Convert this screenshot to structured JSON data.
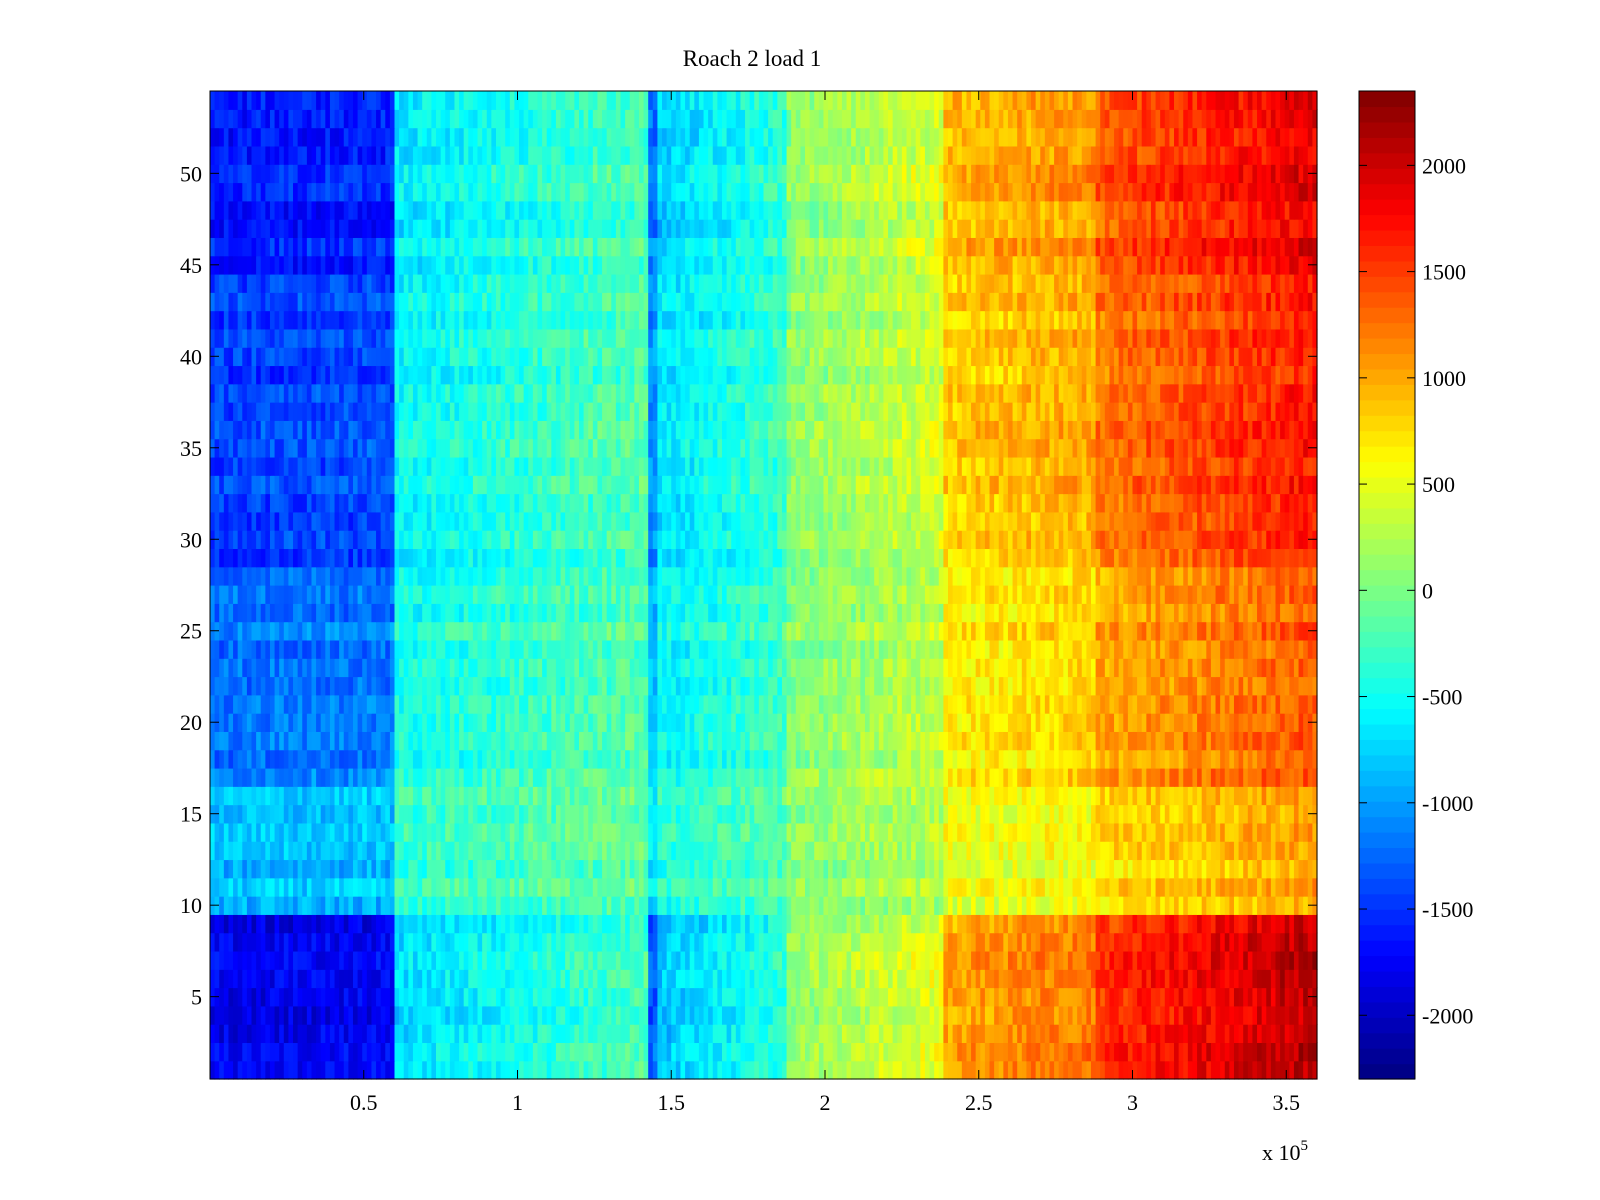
{
  "chart_data": {
    "type": "heatmap",
    "title": "Roach 2 load 1",
    "xlabel": "",
    "ylabel": "",
    "x_multiplier_label": "x 10",
    "x_multiplier_exponent": "5",
    "xlim": [
      0,
      360000
    ],
    "ylim": [
      0.5,
      54.5
    ],
    "xticks": [
      {
        "value": 0.5,
        "label": "0.5"
      },
      {
        "value": 1,
        "label": "1"
      },
      {
        "value": 1.5,
        "label": "1.5"
      },
      {
        "value": 2,
        "label": "2"
      },
      {
        "value": 2.5,
        "label": "2.5"
      },
      {
        "value": 3,
        "label": "3"
      },
      {
        "value": 3.5,
        "label": "3.5"
      }
    ],
    "yticks": [
      {
        "value": 5,
        "label": "5"
      },
      {
        "value": 10,
        "label": "10"
      },
      {
        "value": 15,
        "label": "15"
      },
      {
        "value": 20,
        "label": "20"
      },
      {
        "value": 25,
        "label": "25"
      },
      {
        "value": 30,
        "label": "30"
      },
      {
        "value": 35,
        "label": "35"
      },
      {
        "value": 40,
        "label": "40"
      },
      {
        "value": 45,
        "label": "45"
      },
      {
        "value": 50,
        "label": "50"
      }
    ],
    "colorbar": {
      "colormap": "jet",
      "clim": [
        -2300,
        2350
      ],
      "ticks": [
        {
          "value": 2000,
          "label": "2000"
        },
        {
          "value": 1500,
          "label": "1500"
        },
        {
          "value": 1000,
          "label": "1000"
        },
        {
          "value": 500,
          "label": "500"
        },
        {
          "value": 0,
          "label": "0"
        },
        {
          "value": -500,
          "label": "-500"
        },
        {
          "value": -1000,
          "label": "-1000"
        },
        {
          "value": -1500,
          "label": "-1500"
        },
        {
          "value": -2000,
          "label": "-2000"
        }
      ]
    },
    "rows": 54,
    "x_segments": [
      {
        "x_start": 0,
        "x_end": 60000,
        "base_start": -1250,
        "base_end": -1200
      },
      {
        "x_start": 60000,
        "x_end": 142000,
        "base_start": -500,
        "base_end": -150
      },
      {
        "x_start": 142000,
        "x_end": 145000,
        "base_start": -900,
        "base_end": -900
      },
      {
        "x_start": 145000,
        "x_end": 187000,
        "base_start": -600,
        "base_end": -250
      },
      {
        "x_start": 187000,
        "x_end": 238000,
        "base_start": 50,
        "base_end": 350
      },
      {
        "x_start": 238000,
        "x_end": 288000,
        "base_start": 700,
        "base_end": 850
      },
      {
        "x_start": 288000,
        "x_end": 360000,
        "base_start": 1050,
        "base_end": 1450
      }
    ],
    "row_band_offsets": [
      {
        "y_from": 1,
        "y_to": 9,
        "scale": 1.45
      },
      {
        "y_from": 10,
        "y_to": 16,
        "scale": 0.7
      },
      {
        "y_from": 17,
        "y_to": 28,
        "scale": 0.95
      },
      {
        "y_from": 29,
        "y_to": 37,
        "scale": 1.15
      },
      {
        "y_from": 38,
        "y_to": 44,
        "scale": 1.15
      },
      {
        "y_from": 45,
        "y_to": 54,
        "scale": 1.3
      }
    ]
  }
}
